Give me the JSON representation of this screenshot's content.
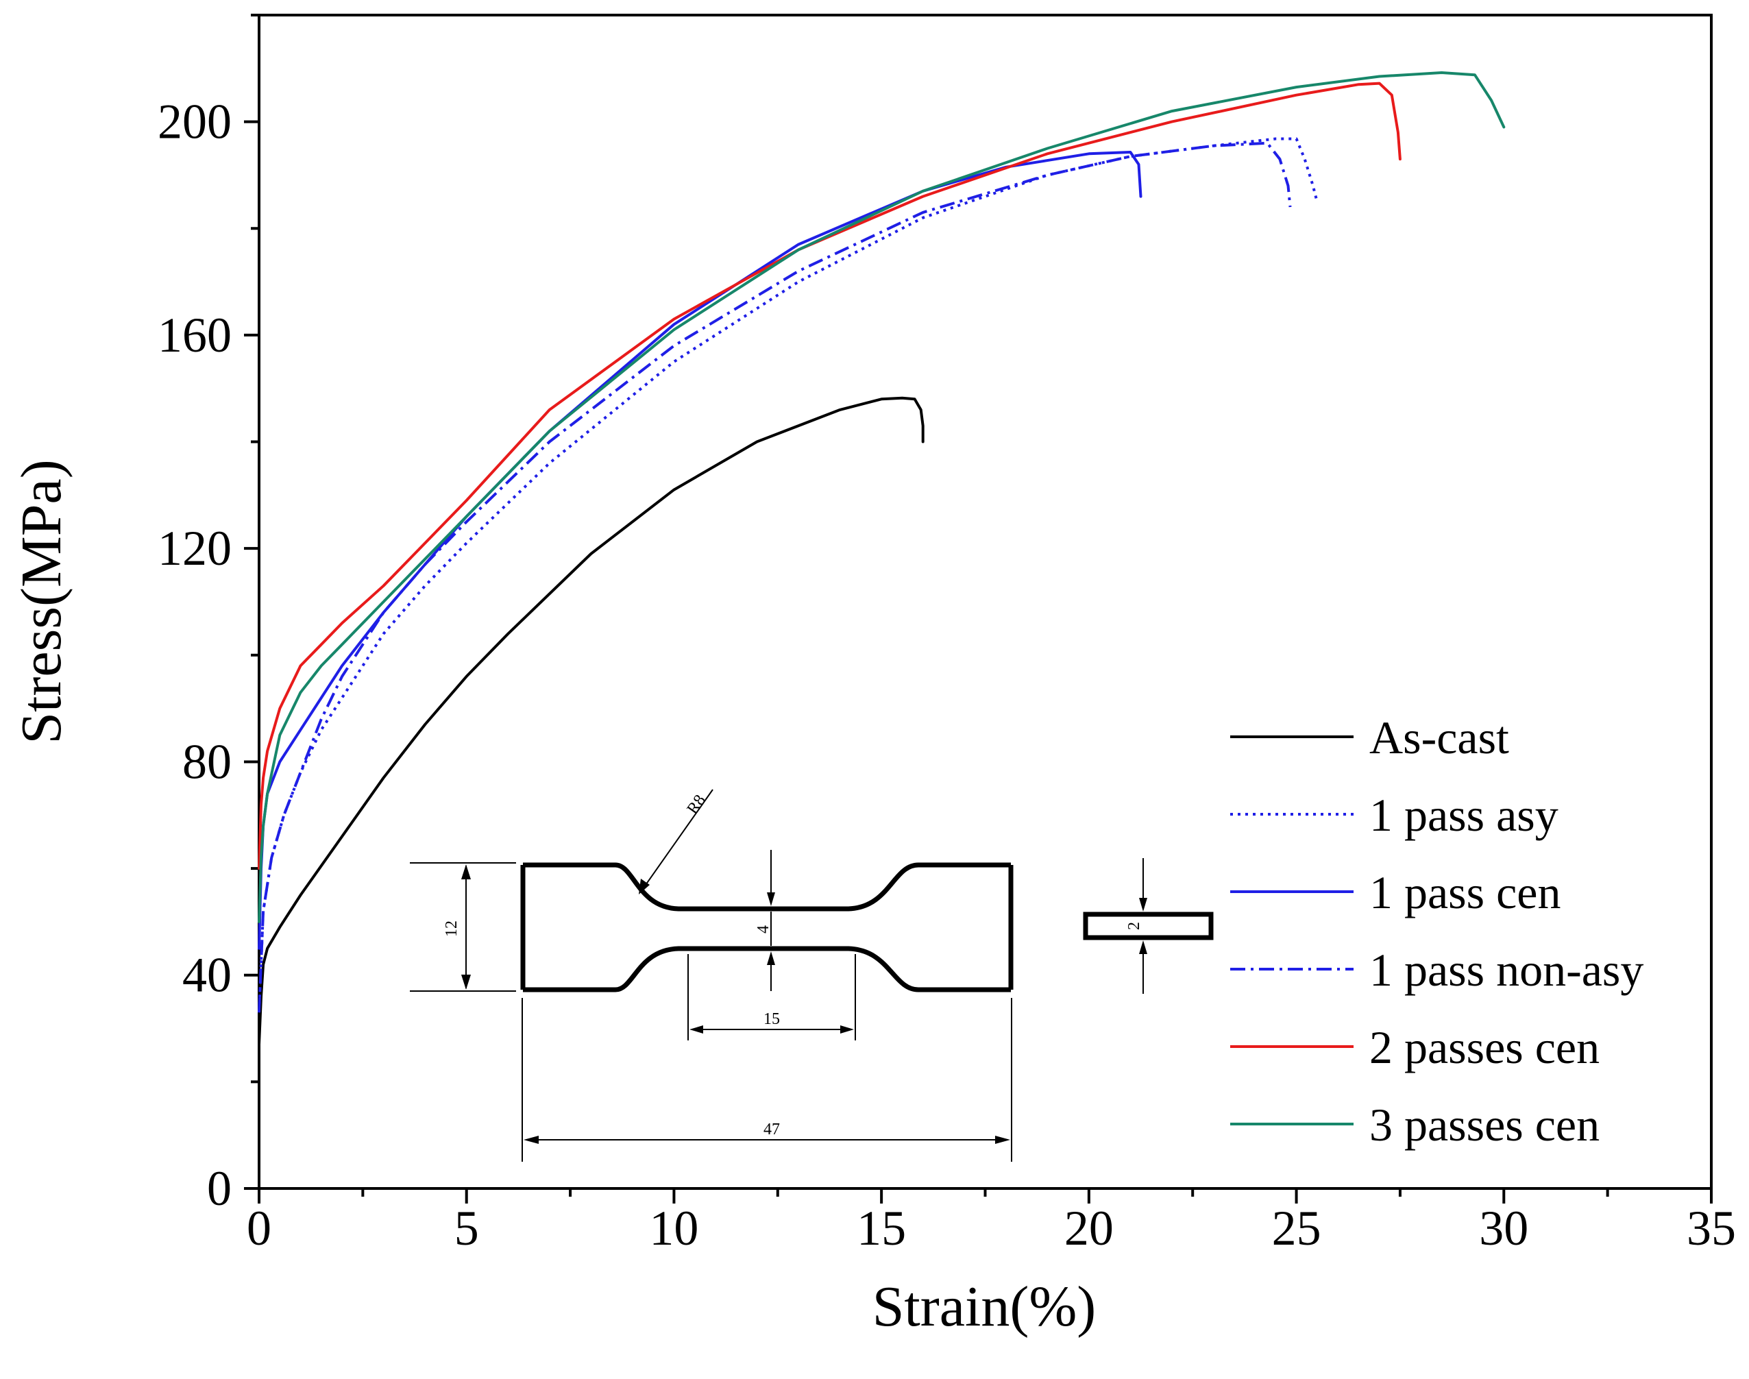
{
  "chart_data": {
    "type": "line",
    "title": "",
    "xlabel": "Strain(%)",
    "ylabel": "Stress(MPa)",
    "xlim": [
      0,
      35
    ],
    "ylim": [
      0,
      220
    ],
    "xticks": [
      0,
      5,
      10,
      15,
      20,
      25,
      30,
      35
    ],
    "yticks": [
      0,
      40,
      80,
      120,
      160,
      200
    ],
    "xtick_labels": [
      "0",
      "5",
      "10",
      "15",
      "20",
      "25",
      "30",
      "35"
    ],
    "ytick_labels": [
      "0",
      "40",
      "80",
      "120",
      "160",
      "200"
    ],
    "grid": false,
    "legend_position": "bottom-right",
    "series": [
      {
        "name": "As-cast",
        "color": "#000000",
        "dash": "solid",
        "x": [
          0,
          0.05,
          0.1,
          0.2,
          0.5,
          1,
          2,
          3,
          4,
          5,
          6,
          8,
          10,
          12,
          14,
          15,
          15.5,
          15.8,
          15.95,
          16.0,
          16.0
        ],
        "y": [
          27,
          36,
          42,
          45,
          49,
          55,
          66,
          77,
          87,
          96,
          104,
          119,
          131,
          140,
          146,
          148,
          148.2,
          148,
          146,
          143,
          140
        ]
      },
      {
        "name": "1 pass asy",
        "color": "#1f1fe6",
        "dash": "dotted",
        "x": [
          0,
          0.1,
          0.3,
          0.6,
          1,
          1.5,
          2,
          3,
          4,
          5,
          7,
          10,
          13,
          16,
          19,
          21,
          23,
          24.5,
          25,
          25.2,
          25.4,
          25.5
        ],
        "y": [
          33,
          52,
          62,
          70,
          78,
          86,
          92,
          104,
          113,
          121,
          136,
          155,
          170,
          182,
          190,
          193.5,
          195.5,
          196.8,
          196.8,
          193,
          188,
          185
        ]
      },
      {
        "name": "1 pass cen",
        "color": "#1f1fe6",
        "dash": "solid",
        "x": [
          0,
          0.05,
          0.1,
          0.2,
          0.5,
          1,
          1.5,
          2,
          3,
          4,
          5,
          7,
          10,
          13,
          16,
          18,
          20,
          21,
          21.2,
          21.25
        ],
        "y": [
          45,
          60,
          68,
          74,
          80,
          86,
          92,
          98,
          108,
          117,
          126,
          142,
          162,
          177,
          187,
          191.5,
          194,
          194.3,
          192,
          186
        ]
      },
      {
        "name": "1 pass non-asy",
        "color": "#1f1fe6",
        "dash": "dashdot",
        "x": [
          0,
          0.1,
          0.3,
          0.6,
          1,
          1.5,
          2,
          3,
          4,
          5,
          7,
          10,
          13,
          16,
          19,
          21,
          23,
          24.3,
          24.6,
          24.8,
          24.85
        ],
        "y": [
          33,
          52,
          62,
          70,
          78,
          88,
          96,
          108,
          117,
          125,
          140,
          158,
          172,
          183,
          190,
          193.5,
          195.5,
          196,
          193,
          188,
          184
        ]
      },
      {
        "name": "2 passes cen",
        "color": "#e81b1b",
        "dash": "solid",
        "x": [
          0,
          0.05,
          0.1,
          0.2,
          0.5,
          1,
          1.5,
          2,
          3,
          4,
          5,
          7,
          10,
          13,
          16,
          19,
          22,
          25,
          26.5,
          27,
          27.3,
          27.45,
          27.5
        ],
        "y": [
          60,
          72,
          77,
          82,
          90,
          98,
          102,
          106,
          113,
          121,
          129,
          146,
          163,
          176,
          186,
          194,
          200,
          205,
          207,
          207.2,
          205,
          198,
          193
        ]
      },
      {
        "name": "3 passes cen",
        "color": "#17876a",
        "dash": "solid",
        "x": [
          0,
          0.05,
          0.1,
          0.2,
          0.5,
          1,
          1.5,
          2,
          3,
          4,
          5,
          7,
          10,
          13,
          16,
          19,
          22,
          25,
          27,
          28.5,
          29.3,
          29.7,
          30.0
        ],
        "y": [
          50,
          62,
          68,
          74,
          85,
          93,
          98,
          102,
          110,
          118,
          126,
          142,
          161,
          176,
          187,
          195,
          202,
          206.5,
          208.5,
          209.2,
          208.8,
          204,
          199
        ]
      }
    ],
    "inset_specimen_dimensions": [
      "R8",
      "12",
      "4",
      "15",
      "47",
      "2"
    ]
  }
}
